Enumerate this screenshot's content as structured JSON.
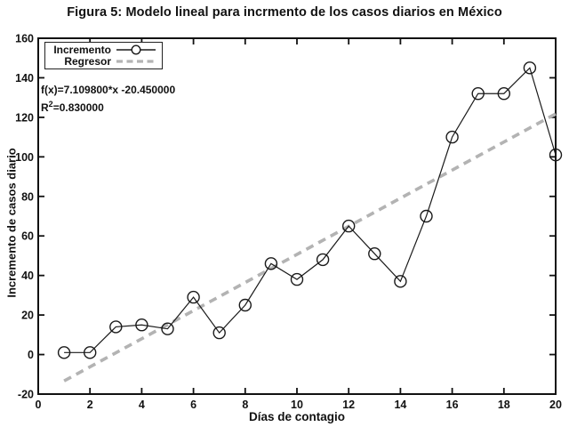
{
  "figure": {
    "title": "Figura 5: Modelo lineal para incrmento de los casos diarios en México"
  },
  "chart_data": {
    "type": "line",
    "title": "Figura 5: Modelo lineal para incrmento de los casos diarios en México",
    "xlabel": "Días de contagio",
    "ylabel": "Incremento de casos diario",
    "xlim": [
      0,
      20
    ],
    "ylim": [
      -20,
      160
    ],
    "xticks": [
      0,
      2,
      4,
      6,
      8,
      10,
      12,
      14,
      16,
      18,
      20
    ],
    "yticks": [
      -20,
      0,
      20,
      40,
      60,
      80,
      100,
      120,
      140,
      160
    ],
    "grid": false,
    "legend_position": "top-left",
    "series": [
      {
        "name": "Incremento",
        "style": "solid-line-open-circle-markers",
        "color": "#1a1a1a",
        "x": [
          1,
          2,
          3,
          4,
          5,
          6,
          7,
          8,
          9,
          10,
          11,
          12,
          13,
          14,
          15,
          16,
          17,
          18,
          19,
          20
        ],
        "values": [
          1,
          1,
          14,
          15,
          13,
          29,
          11,
          25,
          46,
          38,
          48,
          65,
          51,
          37,
          70,
          110,
          132,
          132,
          145,
          101
        ]
      },
      {
        "name": "Regresor",
        "style": "dashed-line",
        "color": "#b3b3b3",
        "slope": 7.1098,
        "intercept": -20.45,
        "x_range": [
          1,
          20
        ]
      }
    ],
    "annotation": {
      "equation": "f(x)=7.109800*x -20.450000",
      "r_base": "R",
      "r_sup": "2",
      "r_rest": "=0.830000",
      "r_squared": 0.83
    }
  }
}
